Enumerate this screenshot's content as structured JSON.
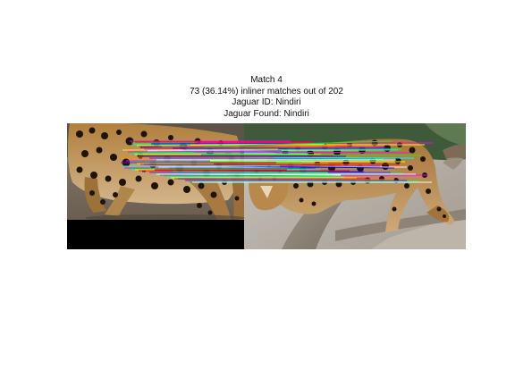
{
  "figure": {
    "title_lines": [
      "Match 4",
      "73 (36.14%) inliner matches out of 202",
      "Jaguar ID: Nindiri",
      "Jaguar Found: Nindiri"
    ],
    "left_image": {
      "subject": "jaguar walking, side view, on forest floor"
    },
    "right_image": {
      "subject": "jaguar climbing over a fallen tree trunk"
    },
    "match_lines": {
      "count_drawn": 73,
      "colors": [
        "#ff00ff",
        "#00ff00",
        "#00ffff",
        "#ffff00",
        "#ff0000",
        "#0000ff",
        "#ff8800",
        "#8800ff",
        "#00ff88",
        "#ffffff"
      ]
    }
  }
}
